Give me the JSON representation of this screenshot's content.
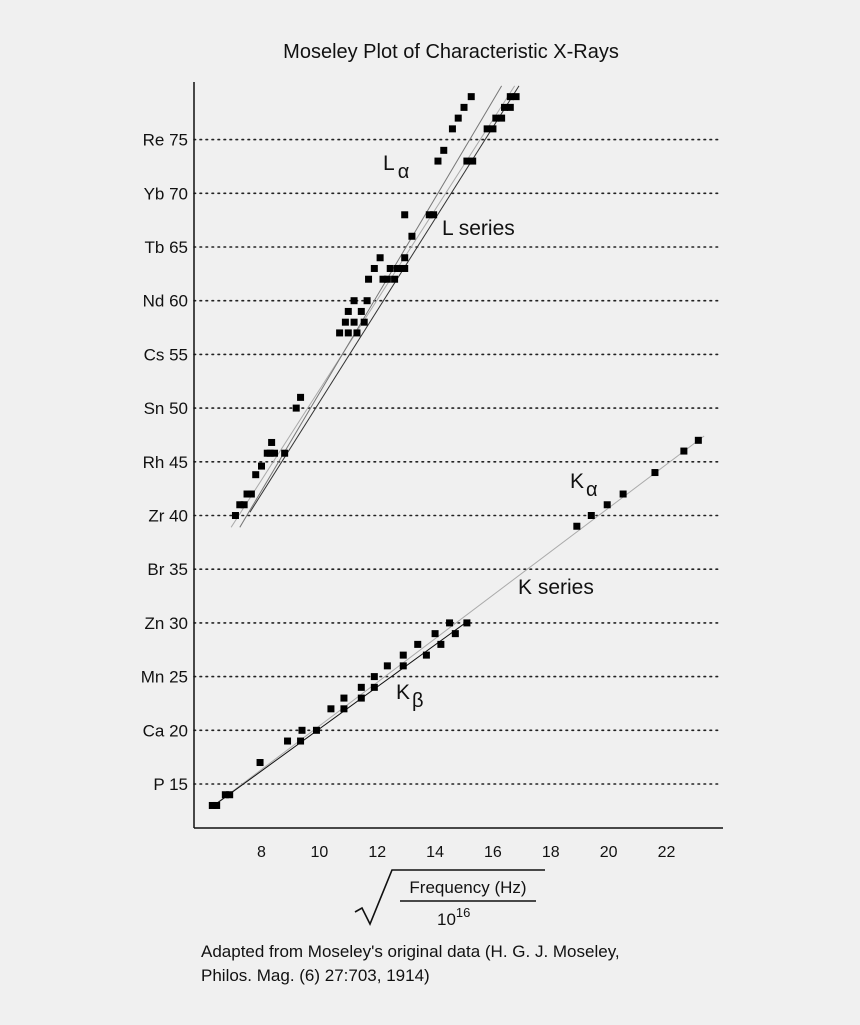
{
  "chart_data": {
    "type": "scatter",
    "title": "Moseley Plot of Characteristic X-Rays",
    "xlim": [
      6,
      24
    ],
    "ylim": [
      10,
      80
    ],
    "x_ticks": [
      8,
      10,
      12,
      14,
      16,
      18,
      20,
      22
    ],
    "y_ticks": [
      {
        "value": 15,
        "label": "P   15"
      },
      {
        "value": 20,
        "label": "Ca 20"
      },
      {
        "value": 25,
        "label": "Mn 25"
      },
      {
        "value": 30,
        "label": "Zn 30"
      },
      {
        "value": 35,
        "label": "Br 35"
      },
      {
        "value": 40,
        "label": "Zr 40"
      },
      {
        "value": 45,
        "label": "Rh 45"
      },
      {
        "value": 50,
        "label": "Sn 50"
      },
      {
        "value": 55,
        "label": "Cs 55"
      },
      {
        "value": 60,
        "label": "Nd 60"
      },
      {
        "value": 65,
        "label": "Tb 65"
      },
      {
        "value": 70,
        "label": "Yb 70"
      },
      {
        "value": 75,
        "label": "Re 75"
      }
    ],
    "grid": "horizontal dotted",
    "xlabel": {
      "numerator": "Frequency (Hz)",
      "denominator_base": "10",
      "denominator_exp": "16"
    },
    "caption": {
      "line1": "Adapted from Moseley's original data (H. G. J. Moseley,",
      "line2": "Philos. Mag. (6) 27:703, 1914)"
    },
    "annotations": {
      "l_alpha": {
        "main": "L",
        "sub": "α"
      },
      "l_series": "L series",
      "k_alpha": {
        "main": "K",
        "sub": "α"
      },
      "k_series": "K series",
      "k_beta": {
        "main": "K",
        "sub": "β"
      }
    },
    "points": [
      {
        "x": 7.1,
        "y": 40
      },
      {
        "x": 7.25,
        "y": 41
      },
      {
        "x": 7.4,
        "y": 41
      },
      {
        "x": 7.5,
        "y": 42
      },
      {
        "x": 7.65,
        "y": 42
      },
      {
        "x": 7.8,
        "y": 43.8
      },
      {
        "x": 8.0,
        "y": 44.6
      },
      {
        "x": 8.2,
        "y": 45.8
      },
      {
        "x": 8.3,
        "y": 45.8
      },
      {
        "x": 8.45,
        "y": 45.8
      },
      {
        "x": 8.35,
        "y": 46.8
      },
      {
        "x": 8.8,
        "y": 45.8
      },
      {
        "x": 9.2,
        "y": 50
      },
      {
        "x": 9.35,
        "y": 51
      },
      {
        "x": 10.7,
        "y": 57
      },
      {
        "x": 10.9,
        "y": 58
      },
      {
        "x": 11.0,
        "y": 59
      },
      {
        "x": 11.2,
        "y": 60
      },
      {
        "x": 11.0,
        "y": 57
      },
      {
        "x": 11.2,
        "y": 58
      },
      {
        "x": 11.3,
        "y": 57
      },
      {
        "x": 11.45,
        "y": 59
      },
      {
        "x": 11.55,
        "y": 58
      },
      {
        "x": 11.65,
        "y": 60
      },
      {
        "x": 11.7,
        "y": 62
      },
      {
        "x": 11.9,
        "y": 63
      },
      {
        "x": 12.1,
        "y": 64
      },
      {
        "x": 12.2,
        "y": 62
      },
      {
        "x": 12.35,
        "y": 62
      },
      {
        "x": 12.45,
        "y": 63
      },
      {
        "x": 12.6,
        "y": 62
      },
      {
        "x": 12.7,
        "y": 63
      },
      {
        "x": 12.8,
        "y": 63
      },
      {
        "x": 12.95,
        "y": 63
      },
      {
        "x": 12.95,
        "y": 64
      },
      {
        "x": 12.95,
        "y": 68
      },
      {
        "x": 13.2,
        "y": 66
      },
      {
        "x": 13.8,
        "y": 68
      },
      {
        "x": 13.95,
        "y": 68
      },
      {
        "x": 14.1,
        "y": 73
      },
      {
        "x": 14.3,
        "y": 74
      },
      {
        "x": 14.6,
        "y": 76
      },
      {
        "x": 14.8,
        "y": 77
      },
      {
        "x": 15.0,
        "y": 78
      },
      {
        "x": 15.25,
        "y": 79
      },
      {
        "x": 15.1,
        "y": 73
      },
      {
        "x": 15.3,
        "y": 73
      },
      {
        "x": 15.8,
        "y": 76
      },
      {
        "x": 16.0,
        "y": 76
      },
      {
        "x": 16.1,
        "y": 77
      },
      {
        "x": 16.3,
        "y": 77
      },
      {
        "x": 16.4,
        "y": 78
      },
      {
        "x": 16.6,
        "y": 78
      },
      {
        "x": 16.6,
        "y": 79
      },
      {
        "x": 16.8,
        "y": 79
      },
      {
        "x": 6.3,
        "y": 13
      },
      {
        "x": 6.45,
        "y": 13
      },
      {
        "x": 6.75,
        "y": 14
      },
      {
        "x": 6.9,
        "y": 14
      },
      {
        "x": 7.95,
        "y": 17
      },
      {
        "x": 8.9,
        "y": 19
      },
      {
        "x": 9.35,
        "y": 19
      },
      {
        "x": 9.4,
        "y": 20
      },
      {
        "x": 9.9,
        "y": 20
      },
      {
        "x": 10.4,
        "y": 22
      },
      {
        "x": 10.85,
        "y": 22
      },
      {
        "x": 10.85,
        "y": 23
      },
      {
        "x": 11.45,
        "y": 23
      },
      {
        "x": 11.45,
        "y": 24
      },
      {
        "x": 11.9,
        "y": 24
      },
      {
        "x": 11.9,
        "y": 25
      },
      {
        "x": 12.35,
        "y": 26
      },
      {
        "x": 12.9,
        "y": 26
      },
      {
        "x": 12.9,
        "y": 27
      },
      {
        "x": 13.4,
        "y": 28
      },
      {
        "x": 13.7,
        "y": 27
      },
      {
        "x": 14.0,
        "y": 29
      },
      {
        "x": 14.2,
        "y": 28
      },
      {
        "x": 14.5,
        "y": 30
      },
      {
        "x": 14.7,
        "y": 29
      },
      {
        "x": 15.1,
        "y": 30
      },
      {
        "x": 18.9,
        "y": 39
      },
      {
        "x": 19.4,
        "y": 40
      },
      {
        "x": 19.95,
        "y": 41
      },
      {
        "x": 20.5,
        "y": 42
      },
      {
        "x": 21.6,
        "y": 44
      },
      {
        "x": 22.6,
        "y": 46
      },
      {
        "x": 23.1,
        "y": 47
      }
    ],
    "fit_lines": [
      {
        "from": [
          6.95,
          38.9
        ],
        "to": [
          16.75,
          80
        ],
        "color": "#aaaaaa"
      },
      {
        "from": [
          7.25,
          38.9
        ],
        "to": [
          16.3,
          80
        ],
        "color": "#777777"
      },
      {
        "from": [
          7.6,
          40.3
        ],
        "to": [
          16.9,
          80
        ],
        "color": "#333333"
      },
      {
        "from": [
          6.2,
          12.7
        ],
        "to": [
          23.3,
          47.4
        ],
        "color": "#aaaaaa"
      },
      {
        "from": [
          6.2,
          12.7
        ],
        "to": [
          15.2,
          30.3
        ],
        "color": "#111111"
      }
    ]
  }
}
